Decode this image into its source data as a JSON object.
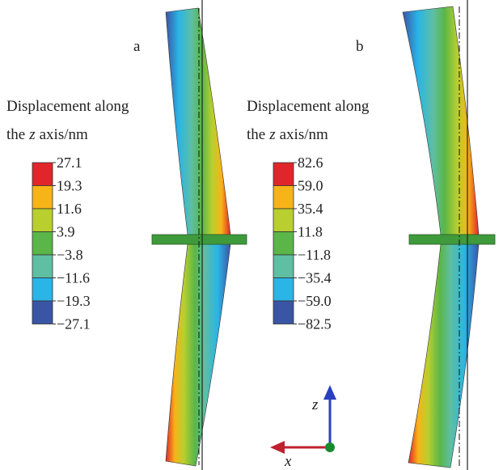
{
  "panels": [
    {
      "label": "a",
      "legend": {
        "title_line1": "Displacement along",
        "title_prefix": "the",
        "title_var": "z",
        "title_suffix": "axis/nm",
        "labels": [
          "27.1",
          "19.3",
          "11.6",
          "3.9",
          "−3.8",
          "−11.6",
          "−19.3",
          "−27.1"
        ],
        "colors": [
          "#e0262a",
          "#f7b418",
          "#b9cf2f",
          "#5ab648",
          "#5ebfa3",
          "#2ab5e6",
          "#3b55a5"
        ]
      }
    },
    {
      "label": "b",
      "legend": {
        "title_line1": "Displacement along",
        "title_prefix": "the",
        "title_var": "z",
        "title_suffix": "axis/nm",
        "labels": [
          "82.6",
          "59.0",
          "35.4",
          "11.8",
          "−11.8",
          "−35.4",
          "−59.0",
          "−82.5"
        ],
        "colors": [
          "#e0262a",
          "#f7b418",
          "#b9cf2f",
          "#5ab648",
          "#5ebfa3",
          "#2ab5e6",
          "#3b55a5"
        ]
      }
    }
  ],
  "axes": {
    "z": "z",
    "x": "x"
  }
}
